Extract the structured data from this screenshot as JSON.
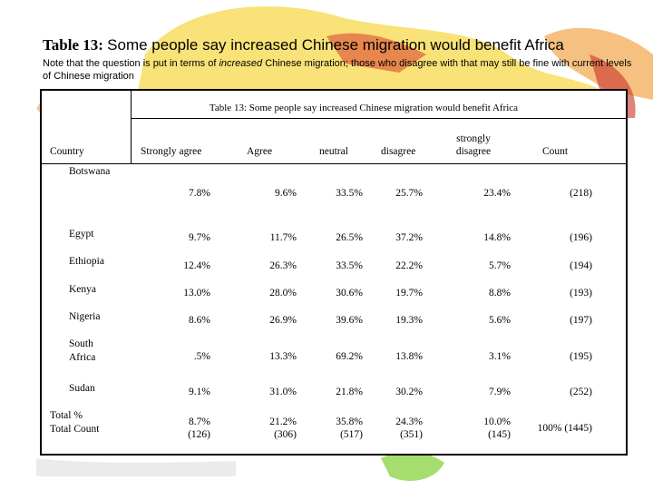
{
  "slide": {
    "title_label": "Table 13:",
    "title_text": "Some people say increased Chinese migration would benefit Africa",
    "note_before": "Note that the question is put in terms of ",
    "note_emph": "increased",
    "note_after": " Chinese migration; those who disagree with that may still be fine with current levels of Chinese migration"
  },
  "table": {
    "caption": "Table 13: Some people say increased Chinese migration would benefit Africa",
    "headers": {
      "country": "Country",
      "strongly_agree": "Strongly agree",
      "agree": "Agree",
      "neutral": "neutral",
      "disagree": "disagree",
      "strongly_disagree_1": "strongly",
      "strongly_disagree_2": "disagree",
      "count": "Count"
    },
    "rows": [
      {
        "country": "Botswana",
        "sa": "7.8%",
        "a": "9.6%",
        "n": "33.5%",
        "d": "25.7%",
        "sd": "23.4%",
        "count": "(218)"
      },
      {
        "country": "Egypt",
        "sa": "9.7%",
        "a": "11.7%",
        "n": "26.5%",
        "d": "37.2%",
        "sd": "14.8%",
        "count": "(196)"
      },
      {
        "country": "Ethiopia",
        "sa": "12.4%",
        "a": "26.3%",
        "n": "33.5%",
        "d": "22.2%",
        "sd": "5.7%",
        "count": "(194)"
      },
      {
        "country": "Kenya",
        "sa": "13.0%",
        "a": "28.0%",
        "n": "30.6%",
        "d": "19.7%",
        "sd": "8.8%",
        "count": "(193)"
      },
      {
        "country": "Nigeria",
        "sa": "8.6%",
        "a": "26.9%",
        "n": "39.6%",
        "d": "19.3%",
        "sd": "5.6%",
        "count": "(197)"
      },
      {
        "country_1": "South",
        "country_2": "Africa",
        "sa": ".5%",
        "a": "13.3%",
        "n": "69.2%",
        "d": "13.8%",
        "sd": "3.1%",
        "count": "(195)"
      },
      {
        "country": "Sudan",
        "sa": "9.1%",
        "a": "31.0%",
        "n": "21.8%",
        "d": "30.2%",
        "sd": "7.9%",
        "count": "(252)"
      }
    ],
    "total": {
      "label_1": "Total %",
      "label_2": "Total Count",
      "sa_1": "8.7%",
      "sa_2": "(126)",
      "a_1": "21.2%",
      "a_2": "(306)",
      "n_1": "35.8%",
      "n_2": "(517)",
      "d_1": "24.3%",
      "d_2": "(351)",
      "sd_1": "10.0%",
      "sd_2": "(145)",
      "count": "100% (1445)"
    }
  }
}
